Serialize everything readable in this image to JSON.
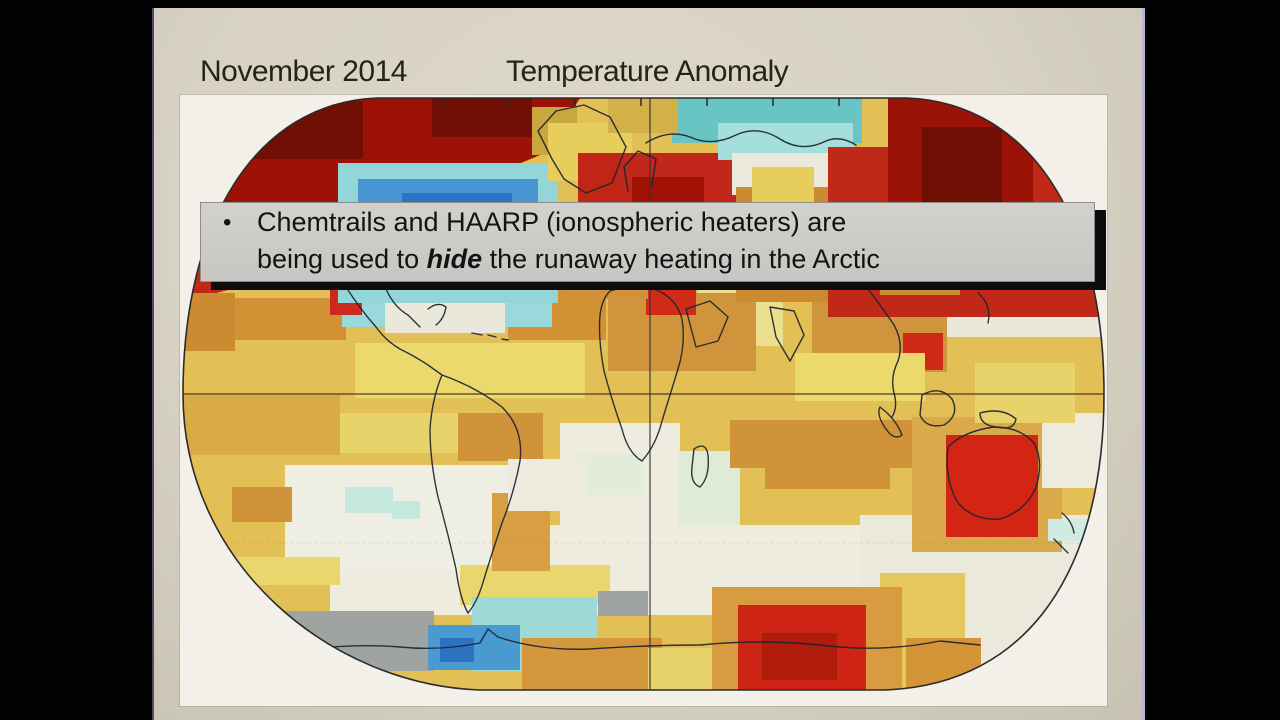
{
  "slide": {
    "title_date": "November 2014",
    "title_label": "Temperature Anomaly"
  },
  "overlay": {
    "bullet_glyph": "•",
    "line1": "Chemtrails and HAARP (ionospheric heaters) are",
    "line2_prefix": "being used to ",
    "line2_emphasis": "hide",
    "line2_suffix": " the runaway heating in the Arctic"
  },
  "chart_data": {
    "type": "heatmap",
    "title": "November 2014 Temperature Anomaly",
    "projection": "robinson-like world map, equator and central meridian gridlines",
    "legend_position": "none visible",
    "base_color": "#e2c055",
    "palette": {
      "extreme_warm": "#6f0f04",
      "very_warm": "#9c1206",
      "warm_red": "#c22a16",
      "warm_orange": "#cc8a31",
      "mild_warm_gold": "#e2c055",
      "slight_warm_yellow": "#ecd96d",
      "neutral_pale": "#edecdf",
      "no_data_gray": "#9fa4a2",
      "slight_cool_cyan": "#a5dfdb",
      "cool_teal": "#68c5c4",
      "cold_blue": "#4795d3",
      "very_cold_blue": "#2e72c2"
    },
    "regions": [
      {
        "name": "south-midlat-pale-band",
        "color": "#edecdf",
        "rects": [
          [
            150,
            430,
            620,
            90
          ]
        ]
      },
      {
        "name": "southeast-pale-corner",
        "color": "#eae9dc",
        "rects": [
          [
            680,
            420,
            245,
            175
          ]
        ]
      },
      {
        "name": "south-pacific-pale",
        "color": "#efeee2",
        "rects": [
          [
            105,
            370,
            240,
            105
          ]
        ]
      },
      {
        "name": "south-atlantic-pale",
        "color": "#edecdf",
        "rects": [
          [
            380,
            328,
            120,
            120
          ]
        ]
      },
      {
        "name": "south-atlantic-green-tinge",
        "color": "#e2ecd9",
        "rects": [
          [
            398,
            358,
            65,
            42
          ]
        ]
      },
      {
        "name": "south-africa-pale-green",
        "color": "#dfead7",
        "rects": [
          [
            498,
            356,
            62,
            74
          ]
        ]
      },
      {
        "name": "south-yellow-patches",
        "color": "#e9d66c",
        "rects": [
          [
            55,
            462,
            105,
            28
          ],
          [
            280,
            470,
            150,
            40
          ]
        ]
      },
      {
        "name": "south-of-equator-gold",
        "color": "#d9ab47",
        "rects": [
          [
            0,
            300,
            160,
            60
          ]
        ]
      },
      {
        "name": "south-left-yellow",
        "color": "#e8d26a",
        "rects": [
          [
            160,
            318,
            200,
            40
          ]
        ]
      },
      {
        "name": "south-pacific-orange-spot",
        "color": "#d09339",
        "rects": [
          [
            52,
            392,
            60,
            35
          ]
        ]
      },
      {
        "name": "south-pacific-cyan-specks",
        "color": "#c4e8dd",
        "rects": [
          [
            165,
            392,
            48,
            26
          ],
          [
            212,
            406,
            28,
            18
          ]
        ]
      },
      {
        "name": "indian-ocean-orange-band",
        "color": "#d09339",
        "rects": [
          [
            550,
            325,
            190,
            48
          ],
          [
            585,
            368,
            125,
            26
          ]
        ]
      },
      {
        "name": "australia-tan",
        "color": "#d9a94a",
        "rects": [
          [
            732,
            322,
            150,
            135
          ]
        ]
      },
      {
        "name": "australia-red",
        "color": "#d32514",
        "rects": [
          [
            766,
            340,
            92,
            102
          ]
        ]
      },
      {
        "name": "new-zealand-cyan",
        "color": "#d2ebe2",
        "rects": [
          [
            868,
            424,
            40,
            22
          ]
        ]
      },
      {
        "name": "brazil-orange",
        "color": "#d09339",
        "rects": [
          [
            278,
            318,
            85,
            48
          ]
        ]
      },
      {
        "name": "argentina-orange",
        "color": "#d79f42",
        "rects": [
          [
            312,
            398,
            58,
            78
          ]
        ]
      },
      {
        "name": "se-brazil-white",
        "color": "#ecebdd",
        "rects": [
          [
            328,
            364,
            78,
            52
          ]
        ]
      },
      {
        "name": "southern-ocean-gray-left",
        "color": "#9fa4a2",
        "rects": [
          [
            86,
            516,
            168,
            60
          ]
        ]
      },
      {
        "name": "southern-ocean-gray-mid",
        "color": "#9fa4a2",
        "rects": [
          [
            418,
            496,
            50,
            25
          ]
        ]
      },
      {
        "name": "antarctic-peninsula-cyan",
        "color": "#9edad5",
        "rects": [
          [
            292,
            502,
            125,
            74
          ]
        ]
      },
      {
        "name": "antarctic-peninsula-blue",
        "color": "#4a9ad2",
        "rects": [
          [
            248,
            530,
            92,
            45
          ]
        ]
      },
      {
        "name": "antarctic-peninsula-blue-dark",
        "color": "#2e72c2",
        "rects": [
          [
            260,
            543,
            34,
            24
          ]
        ]
      },
      {
        "name": "antarctic-cyan-mid",
        "color": "#a5ded9",
        "rects": [
          [
            378,
            552,
            90,
            43
          ]
        ]
      },
      {
        "name": "antarctica-orange-coast",
        "color": "#d5973c",
        "rects": [
          [
            342,
            543,
            140,
            52
          ]
        ]
      },
      {
        "name": "antarctica-yellow-coast",
        "color": "#e8d26a",
        "rects": [
          [
            468,
            553,
            65,
            42
          ]
        ]
      },
      {
        "name": "bottom-right-gold-streak",
        "color": "#e5c75e",
        "rects": [
          [
            700,
            478,
            85,
            117
          ]
        ]
      },
      {
        "name": "bottom-right-orange-streak",
        "color": "#d49438",
        "rects": [
          [
            726,
            543,
            75,
            52
          ]
        ]
      },
      {
        "name": "east-antarctica-orange",
        "color": "#d89b3f",
        "rects": [
          [
            532,
            492,
            190,
            103
          ]
        ]
      },
      {
        "name": "east-antarctica-red",
        "color": "#ce2415",
        "rects": [
          [
            558,
            510,
            128,
            85
          ]
        ]
      },
      {
        "name": "east-antarctica-red-dark",
        "color": "#b01b0c",
        "rects": [
          [
            582,
            538,
            75,
            47
          ]
        ]
      },
      {
        "name": "right-edge-pale",
        "color": "#ecebde",
        "rects": [
          [
            862,
            318,
            63,
            75
          ]
        ]
      },
      {
        "name": "equator-right-yellow",
        "color": "#e8d26a",
        "rects": [
          [
            795,
            268,
            100,
            60
          ]
        ]
      },
      {
        "name": "nw-pacific-pale",
        "color": "#e9e8db",
        "rects": [
          [
            752,
            162,
            173,
            80
          ]
        ]
      },
      {
        "name": "china-orange",
        "color": "#d0953c",
        "rects": [
          [
            632,
            193,
            135,
            84
          ]
        ]
      },
      {
        "name": "vietnam-red",
        "color": "#d02818",
        "rects": [
          [
            723,
            238,
            40,
            37
          ]
        ]
      },
      {
        "name": "mideast-pale-yellow",
        "color": "#ecdf8e",
        "rects": [
          [
            518,
            193,
            85,
            58
          ]
        ]
      },
      {
        "name": "north-africa-orange",
        "color": "#d0953c",
        "rects": [
          [
            428,
            198,
            148,
            78
          ]
        ]
      },
      {
        "name": "sahara-red-spot",
        "color": "#cf2b17",
        "rects": [
          [
            466,
            188,
            50,
            32
          ]
        ]
      },
      {
        "name": "west-atlantic-orange",
        "color": "#d19134",
        "rects": [
          [
            328,
            193,
            98,
            52
          ]
        ]
      },
      {
        "name": "north-pacific-orange",
        "color": "#d19134",
        "rects": [
          [
            28,
            203,
            138,
            42
          ]
        ]
      },
      {
        "name": "gulf-se-us-cyan",
        "color": "#9ad9db",
        "rects": [
          [
            162,
            188,
            210,
            44
          ]
        ]
      },
      {
        "name": "gulf-pale",
        "color": "#e9e8da",
        "rects": [
          [
            205,
            208,
            120,
            30
          ]
        ]
      },
      {
        "name": "us-southwest-red-spot",
        "color": "#cc2a1a",
        "rects": [
          [
            150,
            190,
            32,
            30
          ]
        ]
      },
      {
        "name": "equator-yellow-left",
        "color": "#ecd96d",
        "rects": [
          [
            175,
            248,
            230,
            55
          ]
        ]
      },
      {
        "name": "equator-yellow-right",
        "color": "#ecd96d",
        "rects": [
          [
            615,
            258,
            130,
            48
          ]
        ]
      },
      {
        "name": "arctic-nw-darkred",
        "color": "#9c1206",
        "polys": [
          [
            [
              0,
              0
            ],
            [
              402,
              0
            ],
            [
              365,
              58
            ],
            [
              300,
              85
            ],
            [
              175,
              115
            ],
            [
              0,
              152
            ]
          ]
        ]
      },
      {
        "name": "arctic-nw-deepred-cores",
        "color": "#701004",
        "rects": [
          [
            48,
            6,
            135,
            58
          ],
          [
            252,
            0,
            100,
            42
          ]
        ]
      },
      {
        "name": "arctic-left-red-band",
        "color": "#bf2817",
        "polys": [
          [
            [
              0,
              150
            ],
            [
              178,
              112
            ],
            [
              158,
              165
            ],
            [
              0,
              208
            ]
          ]
        ]
      },
      {
        "name": "left-edge-orange",
        "color": "#cc8a31",
        "rects": [
          [
            0,
            198,
            55,
            58
          ]
        ]
      },
      {
        "name": "hudson-cyan-fringe",
        "color": "#93d6da",
        "rects": [
          [
            158,
            68,
            220,
            140
          ]
        ]
      },
      {
        "name": "hudson-blue",
        "color": "#4795d3",
        "rects": [
          [
            178,
            84,
            180,
            108
          ]
        ]
      },
      {
        "name": "hudson-blue-dark",
        "color": "#2e72c2",
        "rects": [
          [
            222,
            98,
            110,
            72
          ]
        ]
      },
      {
        "name": "greenland-olive",
        "color": "#c8a83e",
        "rects": [
          [
            352,
            12,
            45,
            48
          ]
        ]
      },
      {
        "name": "greenland-yellow",
        "color": "#e6cd5c",
        "rects": [
          [
            368,
            28,
            84,
            58
          ]
        ]
      },
      {
        "name": "north-atlantic-red",
        "color": "#c02515",
        "rects": [
          [
            398,
            58,
            115,
            78
          ]
        ]
      },
      {
        "name": "west-europe-orange",
        "color": "#d0933a",
        "rects": [
          [
            388,
            132,
            80,
            72
          ]
        ]
      },
      {
        "name": "scandinavia-red",
        "color": "#c1271b",
        "rects": [
          [
            438,
            58,
            135,
            115
          ]
        ]
      },
      {
        "name": "scandinavia-darkred",
        "color": "#a01206",
        "rects": [
          [
            452,
            82,
            72,
            52
          ]
        ]
      },
      {
        "name": "arctic-siberia-teal",
        "color": "#68c5c4",
        "rects": [
          [
            492,
            0,
            190,
            48
          ]
        ]
      },
      {
        "name": "arctic-siberia-cyan-light",
        "color": "#a5dfdb",
        "rects": [
          [
            538,
            28,
            135,
            37
          ]
        ]
      },
      {
        "name": "arctic-white-strip",
        "color": "#eae9dc",
        "rects": [
          [
            552,
            58,
            135,
            42
          ]
        ]
      },
      {
        "name": "top-mid-olive",
        "color": "#d2b148",
        "rects": [
          [
            428,
            0,
            70,
            38
          ]
        ]
      },
      {
        "name": "siberia-orange",
        "color": "#cc8a31",
        "rects": [
          [
            556,
            92,
            125,
            115
          ]
        ]
      },
      {
        "name": "siberia-yellow",
        "color": "#e6cd5c",
        "rects": [
          [
            572,
            72,
            62,
            36
          ]
        ]
      },
      {
        "name": "siberia-red-spot",
        "color": "#c1271b",
        "rects": [
          [
            606,
            118,
            62,
            48
          ]
        ]
      },
      {
        "name": "ne-asia-red",
        "color": "#c02917",
        "rects": [
          [
            648,
            52,
            277,
            170
          ]
        ]
      },
      {
        "name": "ne-asia-darkred",
        "color": "#9b1206",
        "rects": [
          [
            708,
            2,
            145,
            135
          ]
        ]
      },
      {
        "name": "ne-asia-deepest-red",
        "color": "#6f0f04",
        "rects": [
          [
            742,
            32,
            80,
            75
          ]
        ]
      },
      {
        "name": "kamchatka-orange",
        "color": "#cc8a31",
        "rects": [
          [
            700,
            142,
            80,
            58
          ]
        ]
      }
    ],
    "gridlines": {
      "equator": "horizontal line at map middle",
      "central_meridian": "vertical line at map center"
    }
  }
}
